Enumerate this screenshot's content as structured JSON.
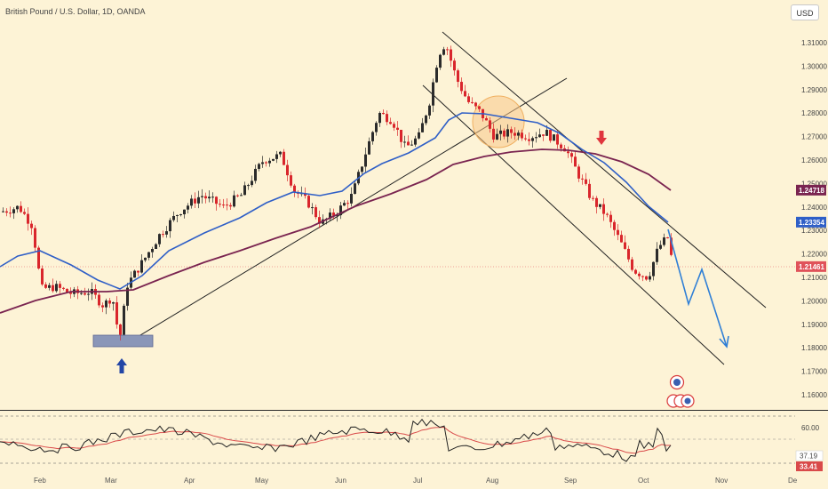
{
  "header": {
    "title": "British Pound / U.S. Dollar, 1D, OANDA",
    "currency_button": "USD"
  },
  "colors": {
    "background": "#fdf3d6",
    "up_candle": "#2b2b2b",
    "down_candle": "#d9262c",
    "ema_fast": "#2f5fc7",
    "ema_slow": "#7a2450",
    "trendline": "#222222",
    "rsi_line": "#222222",
    "rsi_signal": "#d94a4a",
    "forecast": "#2f7fd6",
    "current_price": "#e0525a",
    "support_box": "#8a96b8",
    "up_arrow": "#2346a6",
    "down_arrow": "#e0353d",
    "circle_highlight": "#f7c68a"
  },
  "price_axis": {
    "ticks": [
      "1.31000",
      "1.30000",
      "1.29000",
      "1.28000",
      "1.27000",
      "1.26000",
      "1.25000",
      "1.24000",
      "1.23000",
      "1.22000",
      "1.21000",
      "1.20000",
      "1.19000",
      "1.18000",
      "1.17000",
      "1.16000"
    ]
  },
  "price_tags": [
    {
      "name": "ema-slow-tag",
      "value": "1.24718",
      "color": "#7a2450",
      "price": 1.24718
    },
    {
      "name": "ema-fast-tag",
      "value": "1.23354",
      "color": "#2f5fc7",
      "price": 1.23354
    },
    {
      "name": "last-price-tag",
      "value": "1.21461",
      "color": "#e0525a",
      "price": 1.21461
    }
  ],
  "time_axis": {
    "labels": [
      "Feb",
      "Mar",
      "Apr",
      "May",
      "Jun",
      "Jul",
      "Aug",
      "Sep",
      "Oct",
      "Nov",
      "De"
    ]
  },
  "rsi_panel": {
    "level_label": "60.00",
    "rsi_value": "37.19",
    "signal_value": "33.41"
  },
  "events": {
    "top_badges": 1,
    "bottom_badges": 3
  }
}
